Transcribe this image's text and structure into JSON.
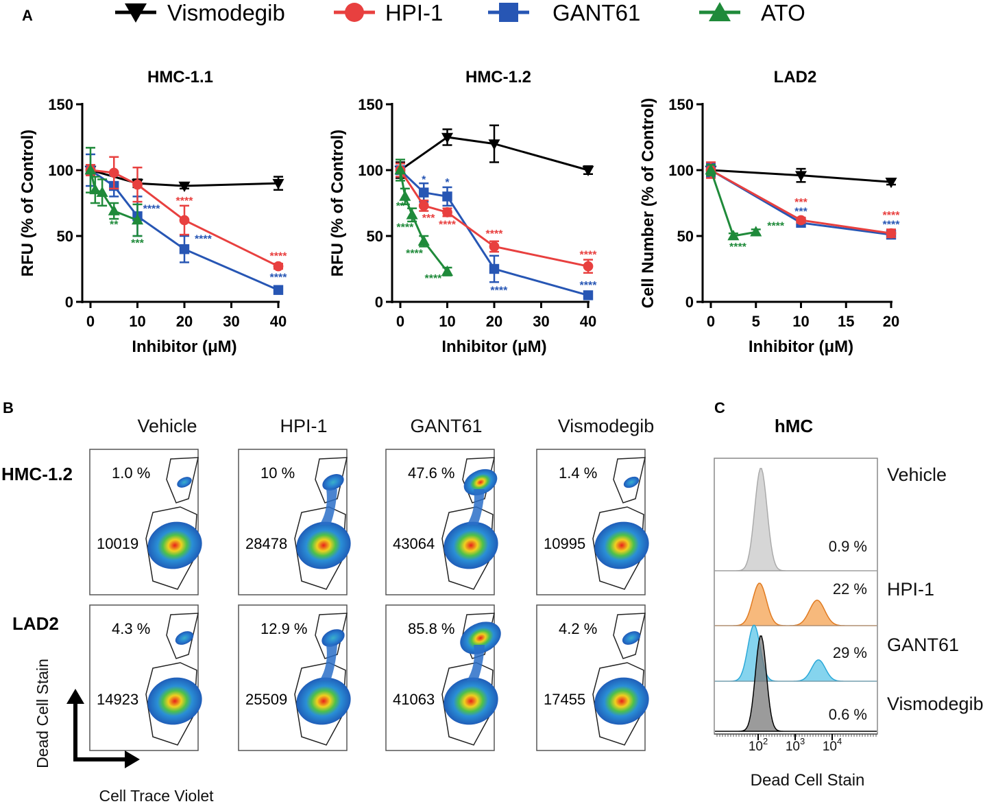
{
  "panel_labels": {
    "a": "A",
    "b": "B",
    "c": "C"
  },
  "legend": [
    {
      "name": "Vismodegib",
      "color": "#000000",
      "marker": "triangle-down-marker"
    },
    {
      "name": "HPI-1",
      "color": "#e8403f",
      "marker": "circle-marker"
    },
    {
      "name": "GANT61",
      "color": "#2756b4",
      "marker": "square-marker"
    },
    {
      "name": "ATO",
      "color": "#1f8a3a",
      "marker": "triangle-up-marker"
    }
  ],
  "colors": {
    "Vismodegib": "#000000",
    "HPI-1": "#e8403f",
    "GANT61": "#2756b4",
    "ATO": "#1f8a3a",
    "hist_vehicle": "#c8c8c8",
    "hist_hpi1": "#f4a250",
    "hist_gant61": "#5cc5e8",
    "hist_vismodegib": "#7a7a7a"
  },
  "chart_data": [
    {
      "type": "line",
      "title": "HMC-1.1",
      "xlabel": "Inhibitor (μM)",
      "ylabel": "RFU (% of Control)",
      "xlim": [
        0,
        40
      ],
      "ylim": [
        0,
        150
      ],
      "xticks": [
        "0",
        "10",
        "20",
        "30",
        "40"
      ],
      "yticks": [
        "0",
        "50",
        "100",
        "150"
      ],
      "series": [
        {
          "name": "Vismodegib",
          "x": [
            0,
            10,
            20,
            40
          ],
          "y": [
            100,
            90,
            88,
            90
          ],
          "err": [
            3,
            3,
            2,
            5
          ]
        },
        {
          "name": "HPI-1",
          "x": [
            0,
            5,
            10,
            20,
            40
          ],
          "y": [
            100,
            98,
            89,
            62,
            27
          ],
          "err": [
            4,
            12,
            13,
            11,
            2
          ]
        },
        {
          "name": "GANT61",
          "x": [
            0,
            5,
            10,
            20,
            40
          ],
          "y": [
            100,
            88,
            65,
            40,
            9
          ],
          "err": [
            12,
            8,
            15,
            10,
            2
          ]
        },
        {
          "name": "ATO",
          "x": [
            0,
            1,
            2.5,
            5,
            10
          ],
          "y": [
            100,
            85,
            83,
            69,
            62
          ],
          "err": [
            17,
            10,
            10,
            6,
            12
          ]
        }
      ],
      "annotations": [
        {
          "text": "****",
          "x": 20,
          "y": 74,
          "series": "HPI-1"
        },
        {
          "text": "****",
          "x": 40,
          "y": 32,
          "series": "HPI-1"
        },
        {
          "text": "****",
          "x": 13,
          "y": 68,
          "series": "GANT61"
        },
        {
          "text": "****",
          "x": 24,
          "y": 45,
          "series": "GANT61"
        },
        {
          "text": "****",
          "x": 40,
          "y": 16,
          "series": "GANT61"
        },
        {
          "text": "**",
          "x": 5,
          "y": 56,
          "series": "ATO"
        },
        {
          "text": "***",
          "x": 10,
          "y": 42,
          "series": "ATO"
        }
      ]
    },
    {
      "type": "line",
      "title": "HMC-1.2",
      "xlabel": "Inhibitor (μM)",
      "ylabel": "RFU (% of Control)",
      "xlim": [
        0,
        40
      ],
      "ylim": [
        0,
        150
      ],
      "xticks": [
        "0",
        "10",
        "20",
        "30",
        "40"
      ],
      "yticks": [
        "0",
        "50",
        "100",
        "150"
      ],
      "series": [
        {
          "name": "Vismodegib",
          "x": [
            0,
            10,
            20,
            40
          ],
          "y": [
            100,
            125,
            120,
            100
          ],
          "err": [
            6,
            6,
            14,
            3
          ]
        },
        {
          "name": "HPI-1",
          "x": [
            0,
            5,
            10,
            20,
            40
          ],
          "y": [
            100,
            73,
            68,
            42,
            27
          ],
          "err": [
            5,
            4,
            3,
            4,
            5
          ]
        },
        {
          "name": "GANT61",
          "x": [
            0,
            5,
            10,
            20,
            40
          ],
          "y": [
            100,
            83,
            80,
            25,
            5
          ],
          "err": [
            5,
            7,
            7,
            10,
            2
          ]
        },
        {
          "name": "ATO",
          "x": [
            0,
            1,
            2.5,
            5,
            10
          ],
          "y": [
            100,
            80,
            66,
            46,
            23
          ],
          "err": [
            8,
            6,
            5,
            4,
            3
          ]
        }
      ],
      "annotations": [
        {
          "text": "*",
          "x": 5,
          "y": 90,
          "series": "GANT61"
        },
        {
          "text": "*",
          "x": 10,
          "y": 88,
          "series": "GANT61"
        },
        {
          "text": "***",
          "x": 6,
          "y": 61,
          "series": "HPI-1"
        },
        {
          "text": "****",
          "x": 10,
          "y": 56,
          "series": "HPI-1"
        },
        {
          "text": "****",
          "x": 20,
          "y": 49,
          "series": "HPI-1"
        },
        {
          "text": "****",
          "x": 40,
          "y": 33,
          "series": "HPI-1"
        },
        {
          "text": "****",
          "x": 21,
          "y": 6,
          "series": "GANT61"
        },
        {
          "text": "****",
          "x": 40,
          "y": 10,
          "series": "GANT61"
        },
        {
          "text": "**",
          "x": 0,
          "y": 70,
          "series": "ATO"
        },
        {
          "text": "****",
          "x": 1,
          "y": 54,
          "series": "ATO"
        },
        {
          "text": "****",
          "x": 3,
          "y": 34,
          "series": "ATO"
        },
        {
          "text": "****",
          "x": 7,
          "y": 15,
          "series": "ATO"
        }
      ]
    },
    {
      "type": "line",
      "title": "LAD2",
      "xlabel": "Inhibitor (μM)",
      "ylabel": "Cell Number  (% of Control)",
      "xlim": [
        0,
        20
      ],
      "ylim": [
        0,
        150
      ],
      "xticks": [
        "0",
        "5",
        "10",
        "15",
        "20"
      ],
      "yticks": [
        "0",
        "50",
        "100",
        "150"
      ],
      "series": [
        {
          "name": "Vismodegib",
          "x": [
            0,
            10,
            20
          ],
          "y": [
            100,
            96,
            91
          ],
          "err": [
            3,
            5,
            2
          ]
        },
        {
          "name": "HPI-1",
          "x": [
            0,
            10,
            20
          ],
          "y": [
            100,
            62,
            52
          ],
          "err": [
            6,
            2,
            3
          ]
        },
        {
          "name": "GANT61",
          "x": [
            0,
            10,
            20
          ],
          "y": [
            100,
            60,
            51
          ],
          "err": [
            5,
            2,
            2
          ]
        },
        {
          "name": "ATO",
          "x": [
            0,
            2.5,
            5
          ],
          "y": [
            100,
            50,
            53
          ],
          "err": [
            4,
            2,
            2
          ]
        }
      ],
      "annotations": [
        {
          "text": "***",
          "x": 10,
          "y": 73,
          "series": "HPI-1"
        },
        {
          "text": "***",
          "x": 10,
          "y": 66,
          "series": "GANT61"
        },
        {
          "text": "****",
          "x": 20,
          "y": 63,
          "series": "HPI-1"
        },
        {
          "text": "****",
          "x": 20,
          "y": 56,
          "series": "GANT61"
        },
        {
          "text": "****",
          "x": 7.2,
          "y": 55,
          "series": "ATO"
        },
        {
          "text": "****",
          "x": 3,
          "y": 39,
          "series": "ATO"
        }
      ]
    }
  ],
  "flow": {
    "columns": [
      "Vehicle",
      "HPI-1",
      "GANT61",
      "Vismodegib"
    ],
    "rows": [
      {
        "name": "HMC-1.2",
        "dead_pct": [
          "1.0 %",
          "10 %",
          "47.6 %",
          "1.4 %"
        ],
        "live_counts": [
          "10019",
          "28478",
          "43064",
          "10995"
        ],
        "dead_frac": [
          0.01,
          0.1,
          0.476,
          0.014
        ]
      },
      {
        "name": "LAD2",
        "dead_pct": [
          "4.3 %",
          "12.9 %",
          "85.8 %",
          "4.2 %"
        ],
        "live_counts": [
          "14923",
          "25509",
          "41063",
          "17455"
        ],
        "dead_frac": [
          0.043,
          0.129,
          0.858,
          0.042
        ]
      }
    ],
    "y_axis_label": "Dead Cell Stain",
    "x_axis_label": "Cell Trace Violet"
  },
  "histogram": {
    "title": "hMC",
    "labels": [
      "Vehicle",
      "HPI-1",
      "GANT61",
      "Vismodegib"
    ],
    "pcts": [
      "0.9 %",
      "22 %",
      "29 %",
      "0.6 %"
    ],
    "xticks": [
      {
        "base": "10",
        "exp": "2"
      },
      {
        "base": "10",
        "exp": "3"
      },
      {
        "base": "10",
        "exp": "4"
      }
    ],
    "xlabel": "Dead Cell Stain"
  }
}
